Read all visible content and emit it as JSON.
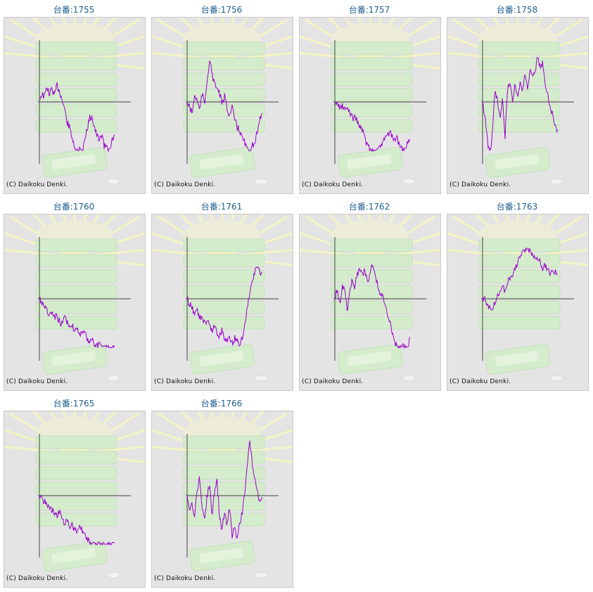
{
  "page": {
    "background": "#ffffff"
  },
  "colors": {
    "series": "#9900cc",
    "axis": "#444444",
    "title": "#1f5f8f",
    "panel": "#e4e4e4"
  },
  "credit": "(C) Daikoku Denki.",
  "chart_data": [
    {
      "type": "line",
      "title": "台番:1755",
      "shape": [
        0.05,
        0.15,
        0.08,
        0.28,
        0.12,
        0.25,
        0.1,
        0.3,
        0.2,
        0.05,
        -0.1,
        -0.35,
        -0.45,
        -0.6,
        -0.85,
        -1.0,
        -0.8,
        -0.95,
        -0.7,
        -0.5,
        -0.3,
        -0.25,
        -0.45,
        -0.6,
        -0.7,
        -0.55,
        -0.8,
        -0.75,
        -0.95,
        -0.7,
        -0.6
      ]
    },
    {
      "type": "line",
      "title": "台番:1756",
      "shape": [
        0.0,
        -0.1,
        -0.2,
        0.1,
        0.05,
        -0.15,
        0.15,
        -0.05,
        0.4,
        0.75,
        0.5,
        0.3,
        0.25,
        0.15,
        -0.05,
        0.1,
        -0.1,
        -0.25,
        -0.1,
        -0.3,
        -0.45,
        -0.5,
        -0.65,
        -0.7,
        -0.85,
        -0.95,
        -0.75,
        -0.8,
        -0.55,
        -0.3,
        -0.2
      ]
    },
    {
      "type": "line",
      "title": "台番:1757",
      "shape": [
        0.0,
        -0.05,
        -0.1,
        -0.08,
        -0.15,
        -0.12,
        -0.2,
        -0.3,
        -0.25,
        -0.4,
        -0.45,
        -0.55,
        -0.7,
        -0.8,
        -0.95,
        -1.0,
        -0.9,
        -0.85,
        -0.75,
        -0.7,
        -0.6,
        -0.55,
        -0.6,
        -0.7,
        -0.65,
        -0.75,
        -0.85,
        -0.9,
        -0.75,
        -0.7
      ]
    },
    {
      "type": "line",
      "title": "台番:1758",
      "shape": [
        0.0,
        -0.3,
        -0.7,
        -1.0,
        -0.5,
        0.2,
        0.0,
        -0.3,
        0.1,
        -0.6,
        0.2,
        0.4,
        0.0,
        0.3,
        0.1,
        0.35,
        0.2,
        0.5,
        0.25,
        0.6,
        0.45,
        0.5,
        0.8,
        0.6,
        0.7,
        0.3,
        0.2,
        -0.1,
        -0.2,
        -0.4,
        -0.5
      ]
    },
    {
      "type": "line",
      "title": "台番:1760",
      "shape": [
        0.0,
        -0.05,
        -0.15,
        -0.2,
        -0.3,
        -0.25,
        -0.35,
        -0.3,
        -0.4,
        -0.45,
        -0.35,
        -0.4,
        -0.5,
        -0.45,
        -0.55,
        -0.5,
        -0.6,
        -0.65,
        -0.6,
        -0.7,
        -0.75,
        -0.7,
        -0.8,
        -0.85,
        -0.8,
        -0.9,
        -0.85,
        -0.95,
        -0.9,
        -1.0,
        -0.95
      ]
    },
    {
      "type": "line",
      "title": "台番:1761",
      "shape": [
        0.0,
        -0.1,
        -0.15,
        -0.25,
        -0.2,
        -0.35,
        -0.3,
        -0.45,
        -0.4,
        -0.5,
        -0.55,
        -0.5,
        -0.6,
        -0.65,
        -0.55,
        -0.7,
        -0.75,
        -0.65,
        -0.8,
        -0.7,
        -0.75,
        -0.85,
        -0.7,
        -0.5,
        -0.2,
        0.1,
        0.3,
        0.45,
        0.6,
        0.5,
        0.4
      ]
    },
    {
      "type": "line",
      "title": "台番:1762",
      "shape": [
        0.0,
        0.2,
        -0.1,
        0.25,
        0.1,
        -0.2,
        0.15,
        0.35,
        0.2,
        0.45,
        0.55,
        0.4,
        0.5,
        0.3,
        0.45,
        0.6,
        0.5,
        0.25,
        0.1,
        0.05,
        -0.1,
        -0.3,
        -0.4,
        -0.6,
        -0.75,
        -0.9,
        -1.0,
        -0.8,
        -0.85,
        -0.95,
        -0.7
      ]
    },
    {
      "type": "line",
      "title": "台番:1763",
      "shape": [
        0.0,
        -0.02,
        -0.1,
        -0.2,
        -0.15,
        -0.05,
        0.05,
        0.1,
        0.2,
        0.15,
        0.3,
        0.35,
        0.45,
        0.55,
        0.65,
        0.75,
        0.8,
        0.85,
        0.9,
        0.85,
        0.8,
        0.75,
        0.7,
        0.65,
        0.55,
        0.6,
        0.5,
        0.45,
        0.5,
        0.45,
        0.5
      ]
    },
    {
      "type": "line",
      "title": "台番:1765",
      "shape": [
        0.0,
        -0.05,
        -0.1,
        -0.15,
        -0.2,
        -0.25,
        -0.3,
        -0.35,
        -0.3,
        -0.4,
        -0.5,
        -0.45,
        -0.55,
        -0.5,
        -0.6,
        -0.65,
        -0.55,
        -0.6,
        -0.7,
        -0.75,
        -0.8,
        -0.85,
        -0.9,
        -0.95,
        -1.0,
        -0.95,
        -1.0,
        -0.95,
        -1.0,
        -0.95,
        -1.0
      ]
    },
    {
      "type": "line",
      "title": "台番:1766",
      "shape": [
        0.0,
        -0.3,
        -0.15,
        -0.4,
        0.1,
        0.3,
        -0.2,
        -0.45,
        0.0,
        0.2,
        -0.35,
        0.1,
        0.25,
        -0.4,
        -0.6,
        -0.3,
        -0.5,
        -0.2,
        -0.7,
        -0.55,
        -0.8,
        -0.5,
        -0.3,
        0.0,
        0.5,
        0.95,
        0.6,
        0.3,
        0.1,
        -0.1,
        0.0
      ]
    }
  ]
}
